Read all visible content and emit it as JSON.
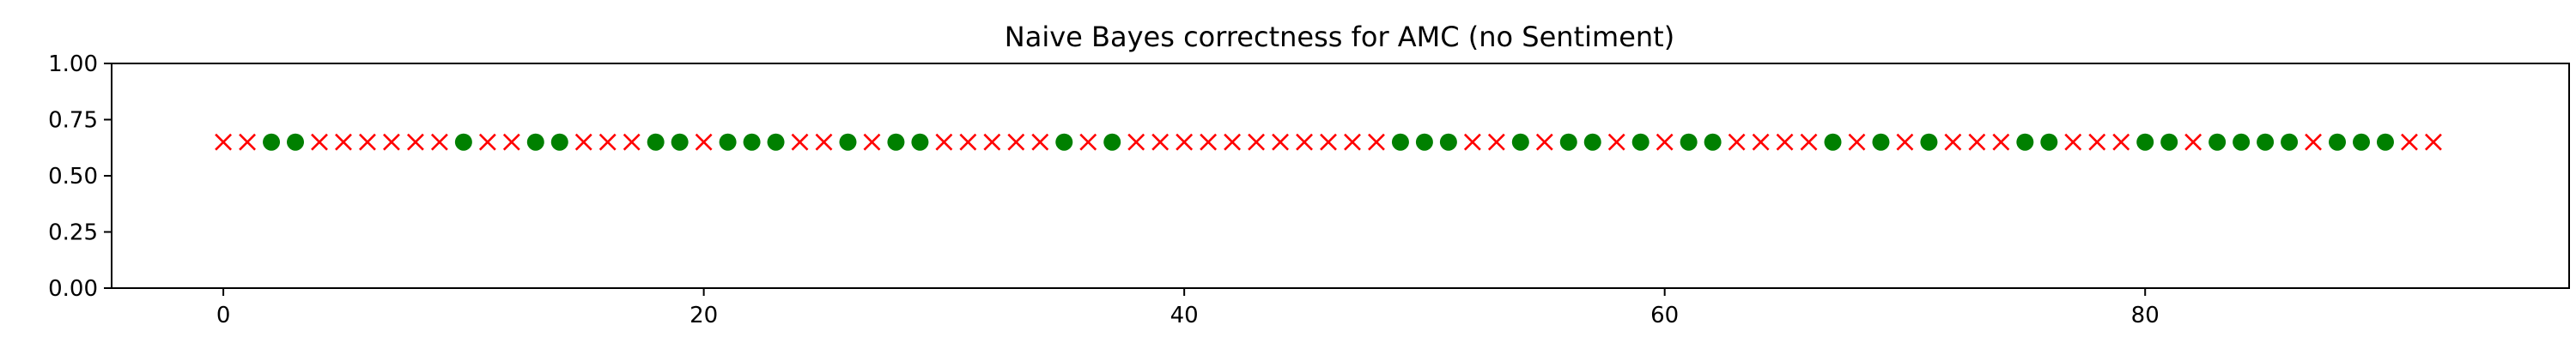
{
  "chart_data": {
    "type": "scatter",
    "title": "Naive Bayes correctness for AMC (no Sentiment)",
    "xlabel": "",
    "ylabel": "",
    "xlim": [
      -4.65,
      97.65
    ],
    "ylim": [
      0,
      1
    ],
    "xticks": [
      0,
      20,
      40,
      60,
      80
    ],
    "yticks": [
      0.0,
      0.25,
      0.5,
      0.75,
      1.0
    ],
    "xtick_labels": [
      "0",
      "20",
      "40",
      "60",
      "80"
    ],
    "ytick_labels": [
      "0.00",
      "0.25",
      "0.50",
      "0.75",
      "1.00"
    ],
    "grid": false,
    "y_value": 0.65,
    "correct_color": "#008000",
    "incorrect_color": "#ff0000",
    "correct_x": [
      2,
      3,
      10,
      13,
      14,
      18,
      19,
      21,
      22,
      23,
      26,
      28,
      29,
      35,
      37,
      49,
      50,
      51,
      54,
      56,
      57,
      59,
      61,
      62,
      67,
      69,
      71,
      75,
      76,
      80,
      81,
      83,
      84,
      85,
      86,
      88,
      89,
      90
    ],
    "incorrect_x": [
      0,
      1,
      4,
      5,
      6,
      7,
      8,
      9,
      11,
      12,
      15,
      16,
      17,
      20,
      24,
      25,
      27,
      30,
      31,
      32,
      33,
      34,
      36,
      38,
      39,
      40,
      41,
      42,
      43,
      44,
      45,
      46,
      47,
      48,
      52,
      53,
      55,
      58,
      60,
      63,
      64,
      65,
      66,
      68,
      70,
      72,
      73,
      74,
      77,
      78,
      79,
      82,
      87,
      91,
      92
    ]
  }
}
